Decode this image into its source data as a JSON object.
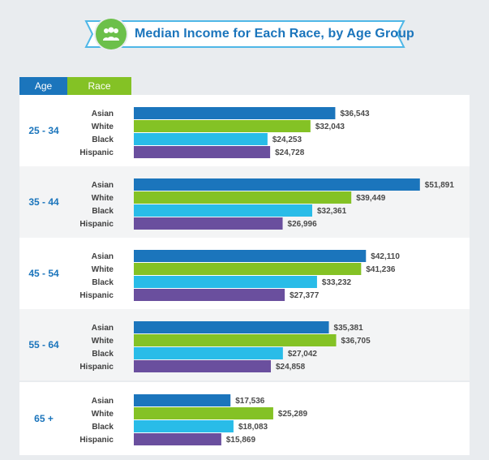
{
  "title": "Median Income for Each Race, by Age Group",
  "legend": {
    "age_label": "Age",
    "race_label": "Race"
  },
  "icons": {
    "title_icon": "people-group-icon"
  },
  "colors": {
    "title": "#1b75bc",
    "age_chip": "#1b75bc",
    "race_chip": "#84c225",
    "background": "#e9ecef",
    "panel": "#ffffff",
    "ribbon_border": "#4fb7e7"
  },
  "chart_data": {
    "type": "bar",
    "orientation": "horizontal",
    "title": "Median Income for Each Race, by Age Group",
    "xlabel": "",
    "ylabel": "",
    "xlim": [
      0,
      54000
    ],
    "grid": false,
    "legend_position": "top-left",
    "series_colors": {
      "Asian": "#1b75bc",
      "White": "#84c225",
      "Black": "#29bce8",
      "Hispanic": "#6a4f9e"
    },
    "groups": [
      {
        "age": "25 - 34",
        "bars": [
          {
            "race": "Asian",
            "value": 36543,
            "label": "$36,543"
          },
          {
            "race": "White",
            "value": 32043,
            "label": "$32,043"
          },
          {
            "race": "Black",
            "value": 24253,
            "label": "$24,253"
          },
          {
            "race": "Hispanic",
            "value": 24728,
            "label": "$24,728"
          }
        ]
      },
      {
        "age": "35 - 44",
        "bars": [
          {
            "race": "Asian",
            "value": 51891,
            "label": "$51,891"
          },
          {
            "race": "White",
            "value": 39449,
            "label": "$39,449"
          },
          {
            "race": "Black",
            "value": 32361,
            "label": "$32,361"
          },
          {
            "race": "Hispanic",
            "value": 26996,
            "label": "$26,996"
          }
        ]
      },
      {
        "age": "45 - 54",
        "bars": [
          {
            "race": "Asian",
            "value": 42110,
            "label": "$42,110"
          },
          {
            "race": "White",
            "value": 41236,
            "label": "$41,236"
          },
          {
            "race": "Black",
            "value": 33232,
            "label": "$33,232"
          },
          {
            "race": "Hispanic",
            "value": 27377,
            "label": "$27,377"
          }
        ]
      },
      {
        "age": "55 - 64",
        "bars": [
          {
            "race": "Asian",
            "value": 35381,
            "label": "$35,381"
          },
          {
            "race": "White",
            "value": 36705,
            "label": "$36,705"
          },
          {
            "race": "Black",
            "value": 27042,
            "label": "$27,042"
          },
          {
            "race": "Hispanic",
            "value": 24858,
            "label": "$24,858"
          }
        ]
      },
      {
        "age": "65 +",
        "bars": [
          {
            "race": "Asian",
            "value": 17536,
            "label": "$17,536"
          },
          {
            "race": "White",
            "value": 25289,
            "label": "$25,289"
          },
          {
            "race": "Black",
            "value": 18083,
            "label": "$18,083"
          },
          {
            "race": "Hispanic",
            "value": 15869,
            "label": "$15,869"
          }
        ]
      }
    ]
  }
}
